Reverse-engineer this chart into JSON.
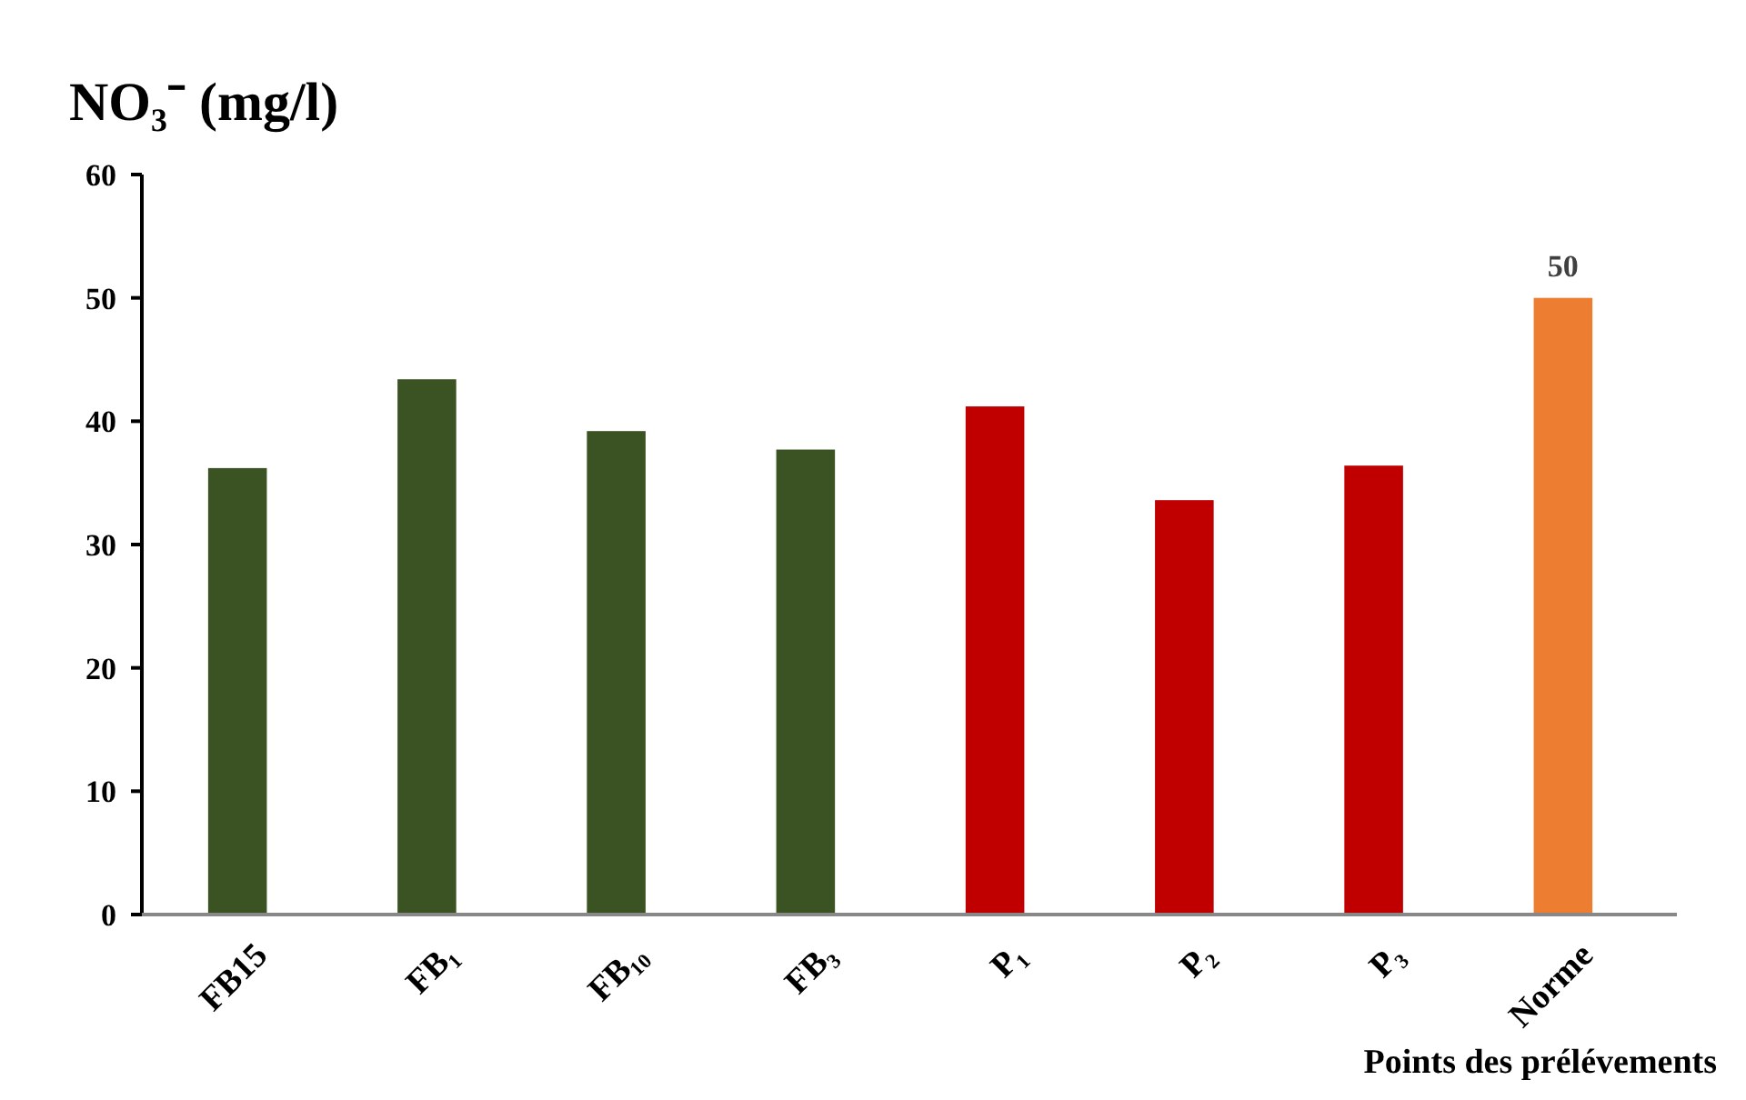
{
  "chart_data": {
    "type": "bar",
    "title": "NO₃⁻ (mg/l)",
    "xlabel": "Points des prélévements",
    "categories": [
      "FB15",
      "FB₁",
      "FB₁₀",
      "FB₃",
      "P₁",
      "P₂",
      "P₃",
      "Norme"
    ],
    "values": [
      36.2,
      43.4,
      39.2,
      37.7,
      41.2,
      33.6,
      36.4,
      50
    ],
    "colors": [
      "#3b5323",
      "#3b5323",
      "#3b5323",
      "#3b5323",
      "#c00000",
      "#c00000",
      "#c00000",
      "#ed7d31"
    ],
    "value_labels": [
      null,
      null,
      null,
      null,
      null,
      null,
      null,
      "50"
    ],
    "ylim": [
      0,
      60
    ],
    "yticks": [
      0,
      10,
      20,
      30,
      40,
      50,
      60
    ],
    "grid": false
  }
}
